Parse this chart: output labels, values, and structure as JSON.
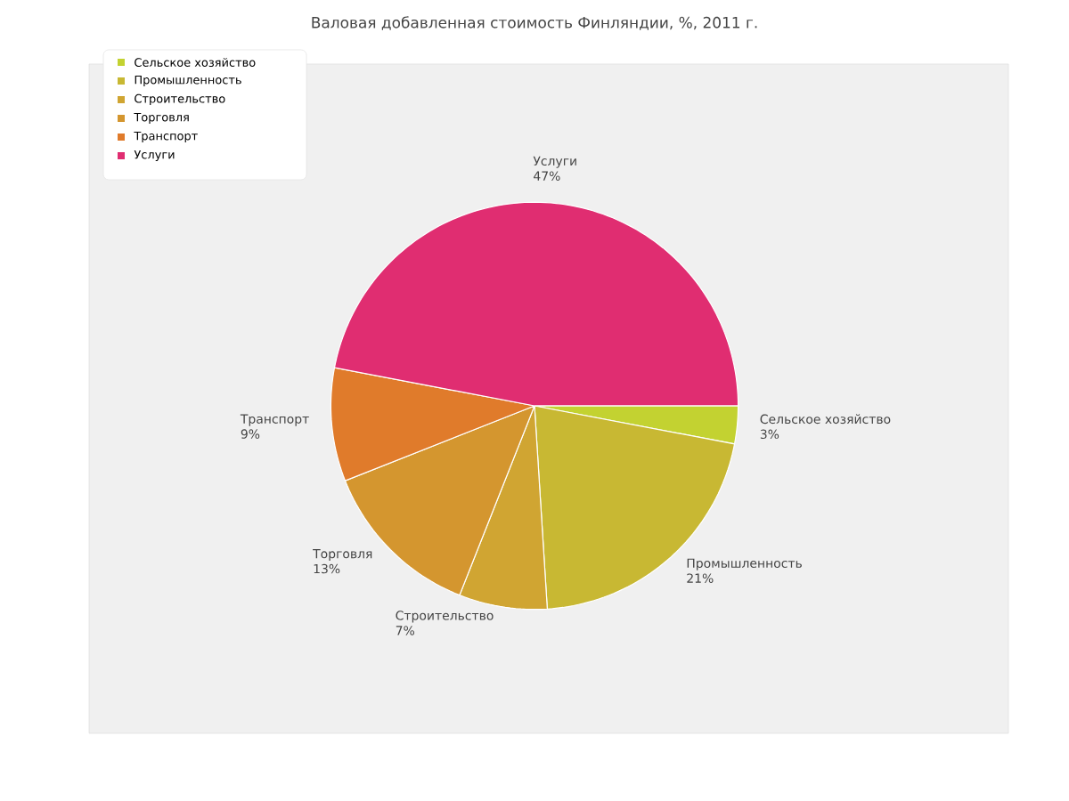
{
  "chart_data": {
    "type": "pie",
    "title": "Валовая добавленная стоимость Финляндии, %, 2011 г.",
    "categories": [
      "Сельское хозяйство",
      "Промышленность",
      "Строительство",
      "Торговля",
      "Транспорт",
      "Услуги"
    ],
    "values": [
      3,
      21,
      7,
      13,
      9,
      47
    ],
    "value_labels": [
      "3%",
      "21%",
      "7%",
      "13%",
      "9%",
      "47%"
    ],
    "colors": [
      "#c3d231",
      "#c8b833",
      "#d0a532",
      "#d4962f",
      "#e07b2b",
      "#e02d71"
    ],
    "legend": "top left"
  }
}
